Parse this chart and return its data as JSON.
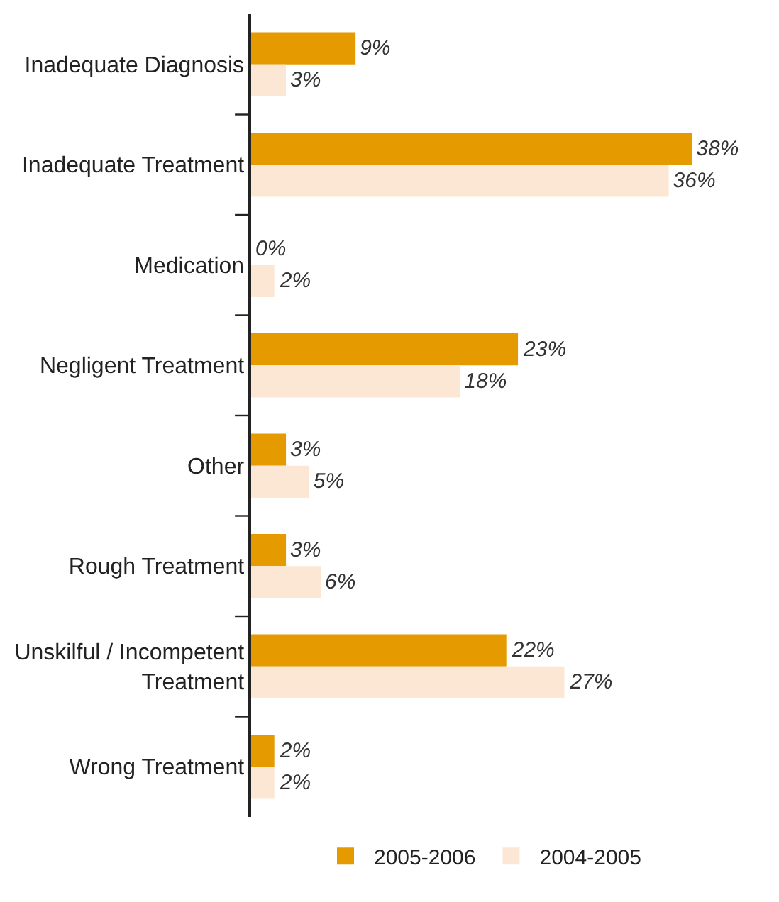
{
  "chart_data": {
    "type": "bar",
    "orientation": "horizontal",
    "categories": [
      "Inadequate Diagnosis",
      "Inadequate Treatment",
      "Medication",
      "Negligent Treatment",
      "Other",
      "Rough Treatment",
      "Unskilful / Incompetent Treatment",
      "Wrong Treatment"
    ],
    "series": [
      {
        "name": "2005-2006",
        "color": "#e59a00",
        "values": [
          9,
          38,
          0,
          23,
          3,
          3,
          22,
          2
        ],
        "value_labels": [
          "9%",
          "38%",
          "0%",
          "23%",
          "3%",
          "3%",
          "22%",
          "2%"
        ]
      },
      {
        "name": "2004-2005",
        "color": "#fbe7d3",
        "values": [
          3,
          36,
          2,
          18,
          5,
          6,
          27,
          2
        ],
        "value_labels": [
          "3%",
          "36%",
          "2%",
          "18%",
          "5%",
          "6%",
          "27%",
          "2%"
        ]
      }
    ],
    "legend": "bottom",
    "tick_labels": "y"
  }
}
